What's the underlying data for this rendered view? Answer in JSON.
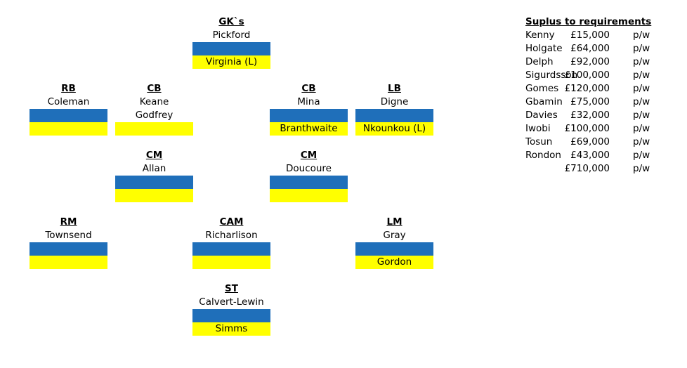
{
  "positions": {
    "gk": {
      "role": "GK`s",
      "name": "Pickford",
      "backup": "Virginia (L)"
    },
    "rb": {
      "role": "RB",
      "name": "Coleman",
      "backup": ""
    },
    "cb1": {
      "role": "CB",
      "name": "Keane",
      "extra": "Godfrey",
      "backup": ""
    },
    "cb2": {
      "role": "CB",
      "name": "Mina",
      "backup": "Branthwaite"
    },
    "lb": {
      "role": "LB",
      "name": "Digne",
      "backup": "Nkounkou (L)"
    },
    "cm1": {
      "role": "CM",
      "name": "Allan",
      "backup": ""
    },
    "cm2": {
      "role": "CM",
      "name": "Doucoure",
      "backup": ""
    },
    "rm": {
      "role": "RM",
      "name": "Townsend",
      "backup": ""
    },
    "cam": {
      "role": "CAM",
      "name": "Richarlison",
      "backup": ""
    },
    "lm": {
      "role": "LM",
      "name": "Gray",
      "backup": "Gordon"
    },
    "st": {
      "role": "ST",
      "name": "Calvert-Lewin",
      "backup": "Simms"
    }
  },
  "surplus": {
    "title": "Suplus to requirements",
    "rows": [
      {
        "name": "Kenny",
        "amount": "£15,000",
        "unit": "p/w"
      },
      {
        "name": "Holgate",
        "amount": "£64,000",
        "unit": "p/w"
      },
      {
        "name": "Delph",
        "amount": "£92,000",
        "unit": "p/w"
      },
      {
        "name": "Sigurdsson",
        "amount": "£100,000",
        "unit": "p/w"
      },
      {
        "name": "Gomes",
        "amount": "£120,000",
        "unit": "p/w"
      },
      {
        "name": "Gbamin",
        "amount": "£75,000",
        "unit": "p/w"
      },
      {
        "name": "Davies",
        "amount": "£32,000",
        "unit": "p/w"
      },
      {
        "name": "Iwobi",
        "amount": "£100,000",
        "unit": "p/w"
      },
      {
        "name": "Tosun",
        "amount": "£69,000",
        "unit": "p/w"
      },
      {
        "name": "Rondon",
        "amount": "£43,000",
        "unit": "p/w"
      }
    ],
    "total": {
      "amount": "£710,000",
      "unit": "p/w"
    }
  },
  "colors": {
    "blue": "#1f6fba",
    "yellow": "#ffff00"
  }
}
